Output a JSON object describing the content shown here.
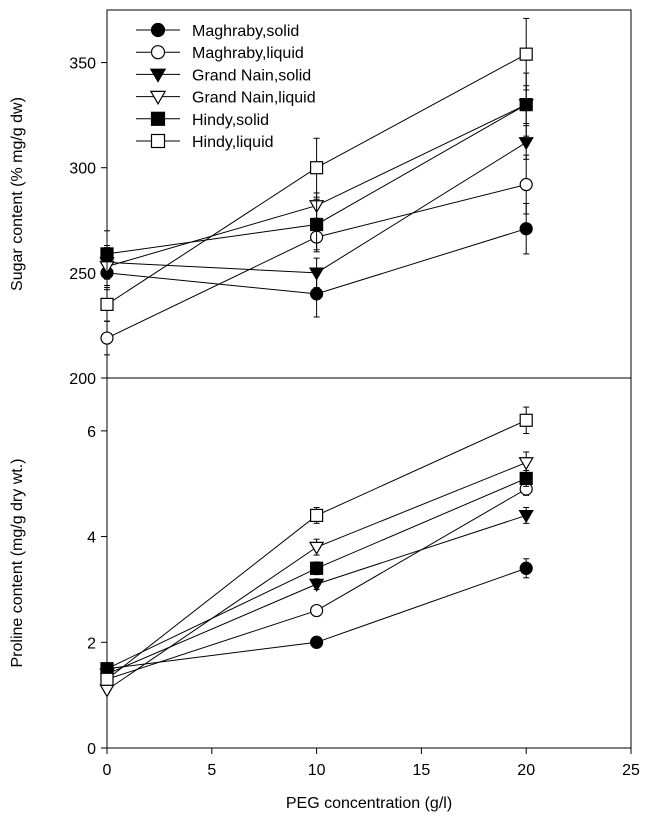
{
  "chart_data": [
    {
      "type": "line",
      "panel": "top",
      "xlim": [
        0,
        25
      ],
      "ylim": [
        200,
        375
      ],
      "yticks": [
        200,
        250,
        300,
        350
      ],
      "xlabel": "",
      "ylabel": "Sugar content (% mg/g dw)",
      "grid": false,
      "legend_position": "top-left",
      "x": [
        0,
        10,
        20
      ],
      "series": [
        {
          "name": "Maghraby,solid",
          "marker": "circle",
          "filled": true,
          "values": [
            250,
            240,
            271
          ],
          "errors": [
            8,
            11,
            12
          ]
        },
        {
          "name": "Maghraby,liquid",
          "marker": "circle",
          "filled": false,
          "values": [
            219,
            267,
            292
          ],
          "errors": [
            8,
            7,
            14
          ]
        },
        {
          "name": "Grand Nain,solid",
          "marker": "triangle-down",
          "filled": true,
          "values": [
            255,
            250,
            312
          ],
          "errors": [
            8,
            7,
            8
          ]
        },
        {
          "name": "Grand Nain,liquid",
          "marker": "triangle-down",
          "filled": false,
          "values": [
            253,
            282,
            330
          ],
          "errors": [
            9,
            6,
            9
          ]
        },
        {
          "name": "Hindy,solid",
          "marker": "square",
          "filled": true,
          "values": [
            259,
            273,
            330
          ],
          "errors": [
            11,
            12,
            15
          ]
        },
        {
          "name": "Hindy,liquid",
          "marker": "square",
          "filled": false,
          "values": [
            235,
            300,
            354
          ],
          "errors": [
            8,
            14,
            17
          ]
        }
      ]
    },
    {
      "type": "line",
      "panel": "bottom",
      "xlim": [
        0,
        25
      ],
      "ylim": [
        0,
        7
      ],
      "xticks": [
        0,
        5,
        10,
        15,
        20,
        25
      ],
      "yticks": [
        0,
        2,
        4,
        6
      ],
      "xlabel": "PEG concentration (g/l)",
      "ylabel": "Proline content (mg/g dry wt.)",
      "grid": false,
      "x": [
        0,
        10,
        20
      ],
      "series": [
        {
          "name": "Maghraby,solid",
          "marker": "circle",
          "filled": true,
          "values": [
            1.5,
            2.0,
            3.4
          ],
          "errors": [
            0.05,
            0.05,
            0.18
          ]
        },
        {
          "name": "Maghraby,liquid",
          "marker": "circle",
          "filled": false,
          "values": [
            1.3,
            2.6,
            4.9
          ],
          "errors": [
            0.05,
            0.05,
            0.12
          ]
        },
        {
          "name": "Grand Nain,solid",
          "marker": "triangle-down",
          "filled": true,
          "values": [
            1.4,
            3.1,
            4.4
          ],
          "errors": [
            0.05,
            0.1,
            0.15
          ]
        },
        {
          "name": "Grand Nain,liquid",
          "marker": "triangle-down",
          "filled": false,
          "values": [
            1.1,
            3.8,
            5.4
          ],
          "errors": [
            0.05,
            0.15,
            0.2
          ]
        },
        {
          "name": "Hindy,solid",
          "marker": "square",
          "filled": true,
          "values": [
            1.5,
            3.4,
            5.1
          ],
          "errors": [
            0.05,
            0.12,
            0.15
          ]
        },
        {
          "name": "Hindy,liquid",
          "marker": "square",
          "filled": false,
          "values": [
            1.3,
            4.4,
            6.2
          ],
          "errors": [
            0.05,
            0.15,
            0.25
          ]
        }
      ]
    }
  ]
}
